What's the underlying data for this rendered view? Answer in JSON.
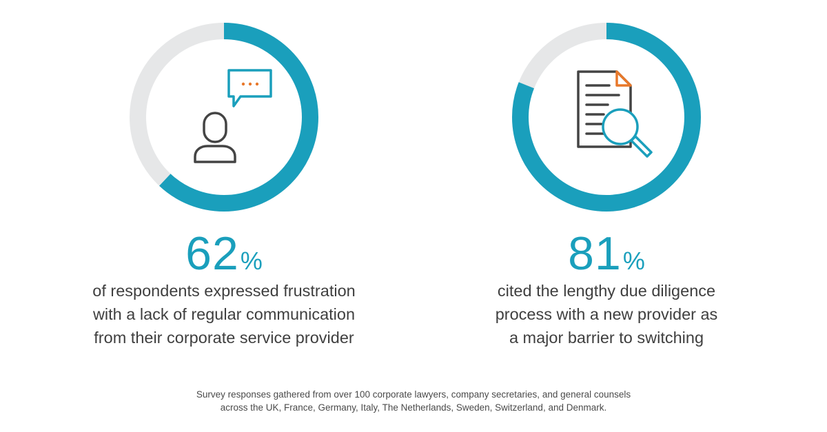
{
  "colors": {
    "accent": "#1a9fbc",
    "track": "#e6e7e8",
    "icon_stroke": "#444444",
    "icon_highlight": "#e8782a"
  },
  "chart_data": [
    {
      "type": "pie",
      "style": "donut",
      "value": 62,
      "max": 100,
      "unit": "%",
      "icon": "person-speech-bubble-icon",
      "description_lines": [
        "of respondents expressed frustration",
        "with a lack of regular communication",
        "from their corporate service provider"
      ]
    },
    {
      "type": "pie",
      "style": "donut",
      "value": 81,
      "max": 100,
      "unit": "%",
      "icon": "document-magnifier-icon",
      "description_lines": [
        "cited the lengthy due diligence",
        "process with a new provider as",
        "a major barrier to switching"
      ]
    }
  ],
  "footnote": {
    "lines": [
      "Survey responses gathered from over 100 corporate lawyers, company secretaries, and general counsels",
      "across the UK, France, Germany, Italy, The Netherlands, Sweden, Switzerland, and Denmark."
    ]
  }
}
